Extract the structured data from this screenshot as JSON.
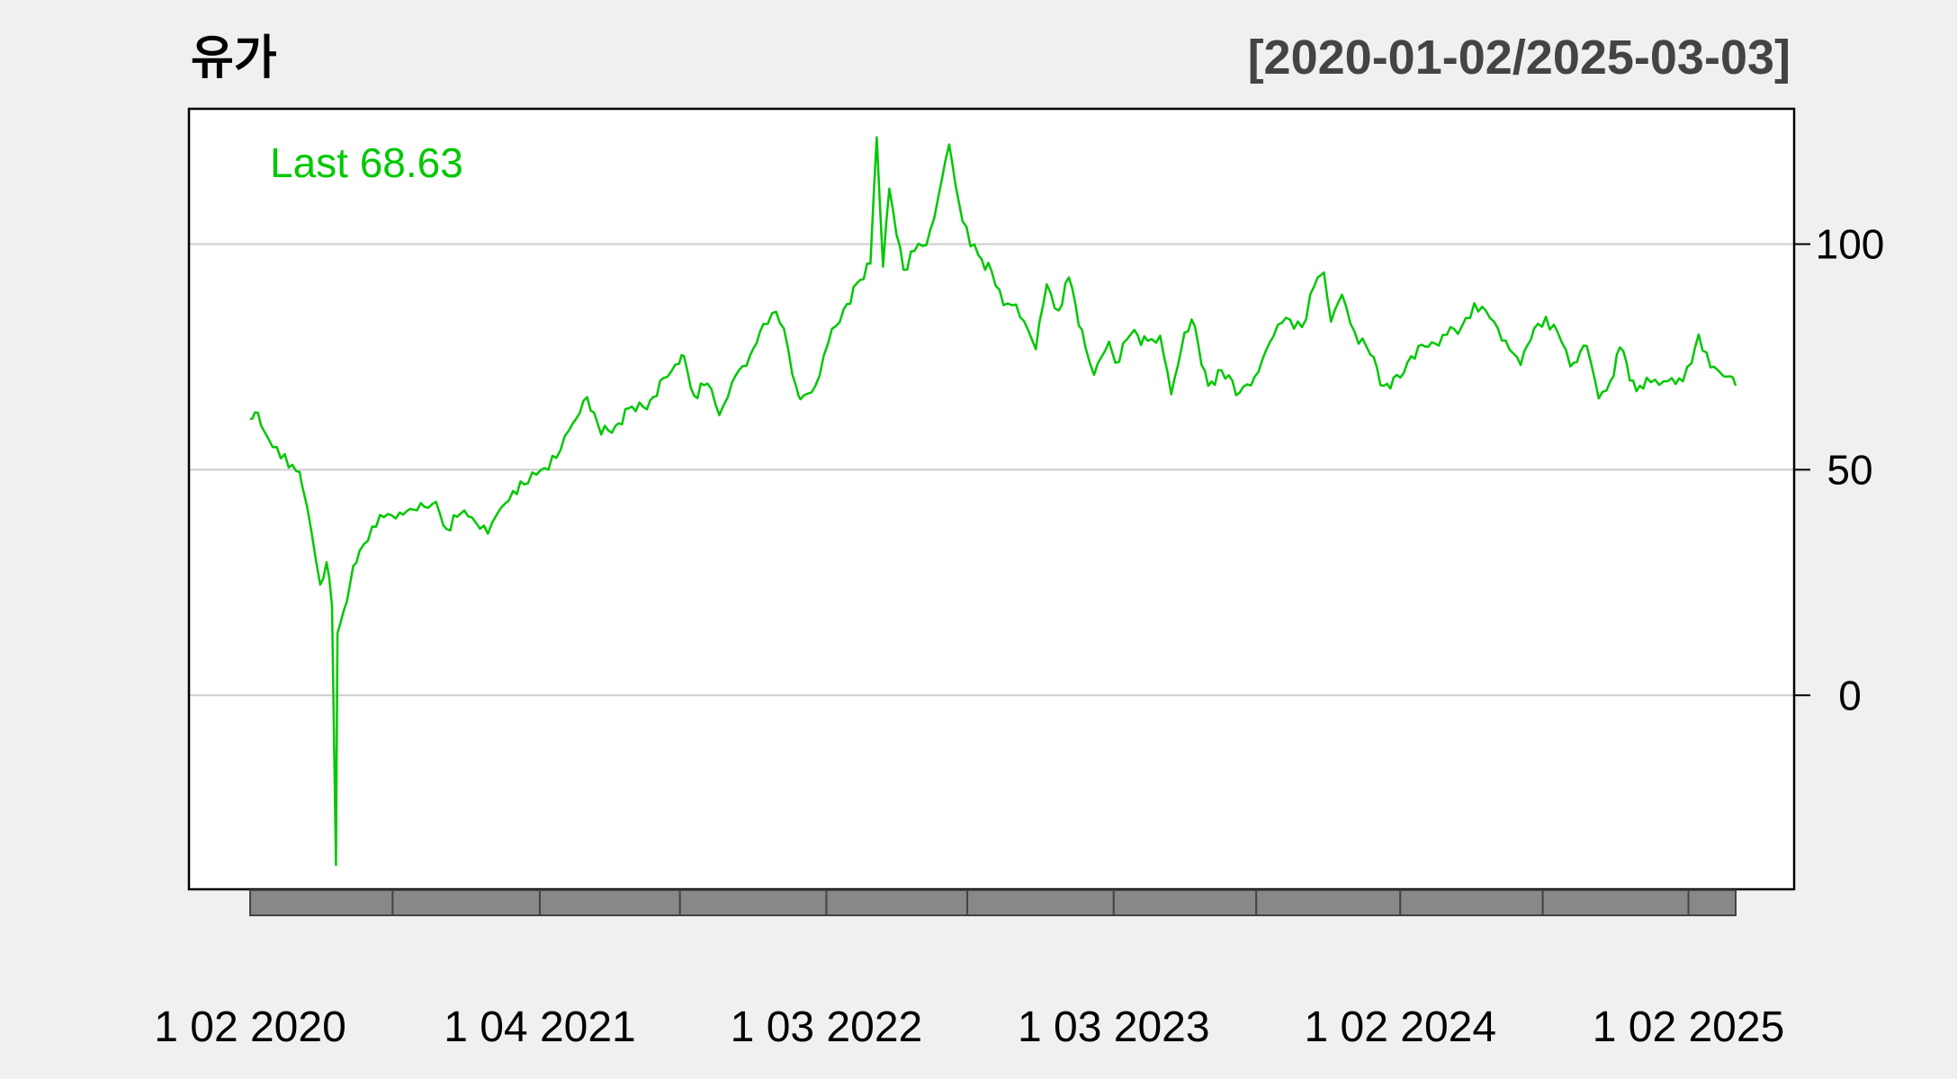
{
  "chart_data": {
    "type": "line",
    "title": "유가",
    "range_label": "[2020-01-02/2025-03-03]",
    "last_label": "Last 68.63",
    "line_color": "#00c800",
    "grid_color": "#cccccc",
    "ylim": [
      -43,
      130
    ],
    "yticks": [
      0,
      50,
      100
    ],
    "ytick_labels": [
      "0",
      "50",
      "100"
    ],
    "xlim": [
      "2020-01-02",
      "2025-03-03"
    ],
    "xtick_labels": [
      "1 02 2020",
      "1 04 2021",
      "1 03 2022",
      "1 03 2023",
      "1 02 2024",
      "1 02 2025"
    ],
    "xtick_dates": [
      "2020-01-02",
      "2021-01-04",
      "2022-01-03",
      "2023-01-03",
      "2024-01-02",
      "2025-01-02"
    ],
    "month_band_dates": [
      "2020-01-02",
      "2020-07-01",
      "2021-01-04",
      "2021-07-01",
      "2022-01-03",
      "2022-07-01",
      "2023-01-03",
      "2023-07-03",
      "2024-01-02",
      "2024-07-01",
      "2025-01-02",
      "2025-03-03"
    ],
    "series": [
      {
        "points": [
          [
            "2020-01-02",
            61.2
          ],
          [
            "2020-01-08",
            62.7
          ],
          [
            "2020-01-20",
            58.5
          ],
          [
            "2020-02-05",
            55.0
          ],
          [
            "2020-02-20",
            50.5
          ],
          [
            "2020-03-05",
            49.5
          ],
          [
            "2020-03-09",
            45.8
          ],
          [
            "2020-03-20",
            36.2
          ],
          [
            "2020-03-31",
            24.5
          ],
          [
            "2020-04-08",
            29.5
          ],
          [
            "2020-04-15",
            19.8
          ],
          [
            "2020-04-20",
            -37.6
          ],
          [
            "2020-04-22",
            13.8
          ],
          [
            "2020-04-30",
            18.8
          ],
          [
            "2020-05-08",
            24.7
          ],
          [
            "2020-05-20",
            32.0
          ],
          [
            "2020-06-05",
            37.4
          ],
          [
            "2020-06-20",
            39.5
          ],
          [
            "2020-07-10",
            40.5
          ],
          [
            "2020-08-01",
            41.0
          ],
          [
            "2020-08-25",
            42.9
          ],
          [
            "2020-09-08",
            36.8
          ],
          [
            "2020-09-25",
            40.2
          ],
          [
            "2020-10-10",
            39.4
          ],
          [
            "2020-10-30",
            35.8
          ],
          [
            "2020-11-15",
            41.4
          ],
          [
            "2020-12-01",
            45.3
          ],
          [
            "2020-12-20",
            47.0
          ],
          [
            "2021-01-05",
            49.9
          ],
          [
            "2021-01-25",
            52.6
          ],
          [
            "2021-02-10",
            58.7
          ],
          [
            "2021-03-05",
            66.1
          ],
          [
            "2021-03-23",
            57.8
          ],
          [
            "2021-04-10",
            59.7
          ],
          [
            "2021-05-01",
            64.0
          ],
          [
            "2021-05-20",
            63.4
          ],
          [
            "2021-06-10",
            70.3
          ],
          [
            "2021-06-30",
            73.5
          ],
          [
            "2021-07-06",
            75.2
          ],
          [
            "2021-07-19",
            66.4
          ],
          [
            "2021-08-05",
            69.1
          ],
          [
            "2021-08-20",
            62.1
          ],
          [
            "2021-09-05",
            69.3
          ],
          [
            "2021-09-28",
            75.3
          ],
          [
            "2021-10-15",
            82.3
          ],
          [
            "2021-10-26",
            84.7
          ],
          [
            "2021-11-10",
            81.3
          ],
          [
            "2021-11-26",
            68.2
          ],
          [
            "2021-12-01",
            65.6
          ],
          [
            "2021-12-20",
            68.6
          ],
          [
            "2022-01-05",
            77.9
          ],
          [
            "2022-01-25",
            85.6
          ],
          [
            "2022-02-15",
            92.1
          ],
          [
            "2022-02-28",
            95.7
          ],
          [
            "2022-03-08",
            123.7
          ],
          [
            "2022-03-16",
            95.0
          ],
          [
            "2022-03-24",
            112.3
          ],
          [
            "2022-04-11",
            94.3
          ],
          [
            "2022-04-25",
            98.5
          ],
          [
            "2022-05-10",
            99.8
          ],
          [
            "2022-05-25",
            110.3
          ],
          [
            "2022-06-08",
            122.1
          ],
          [
            "2022-06-20",
            109.6
          ],
          [
            "2022-07-05",
            99.5
          ],
          [
            "2022-07-15",
            97.6
          ],
          [
            "2022-08-01",
            93.9
          ],
          [
            "2022-08-16",
            86.5
          ],
          [
            "2022-09-01",
            86.6
          ],
          [
            "2022-09-26",
            76.7
          ],
          [
            "2022-10-10",
            91.1
          ],
          [
            "2022-10-25",
            85.3
          ],
          [
            "2022-11-07",
            92.6
          ],
          [
            "2022-11-28",
            77.2
          ],
          [
            "2022-12-09",
            71.0
          ],
          [
            "2022-12-28",
            78.4
          ],
          [
            "2023-01-05",
            73.7
          ],
          [
            "2023-01-25",
            80.1
          ],
          [
            "2023-02-15",
            78.6
          ],
          [
            "2023-03-03",
            79.7
          ],
          [
            "2023-03-17",
            66.7
          ],
          [
            "2023-04-03",
            80.4
          ],
          [
            "2023-04-12",
            83.3
          ],
          [
            "2023-05-03",
            68.6
          ],
          [
            "2023-05-20",
            72.0
          ],
          [
            "2023-06-12",
            67.1
          ],
          [
            "2023-07-01",
            70.6
          ],
          [
            "2023-07-25",
            79.6
          ],
          [
            "2023-08-10",
            83.7
          ],
          [
            "2023-08-30",
            81.6
          ],
          [
            "2023-09-15",
            90.8
          ],
          [
            "2023-09-27",
            93.7
          ],
          [
            "2023-10-06",
            82.8
          ],
          [
            "2023-10-20",
            88.8
          ],
          [
            "2023-11-05",
            80.6
          ],
          [
            "2023-11-25",
            75.5
          ],
          [
            "2023-12-12",
            68.6
          ],
          [
            "2024-01-02",
            70.4
          ],
          [
            "2024-01-25",
            77.4
          ],
          [
            "2024-02-15",
            78.0
          ],
          [
            "2024-03-01",
            79.9
          ],
          [
            "2024-03-20",
            81.7
          ],
          [
            "2024-04-05",
            86.9
          ],
          [
            "2024-04-25",
            83.6
          ],
          [
            "2024-05-15",
            78.6
          ],
          [
            "2024-06-03",
            73.2
          ],
          [
            "2024-06-20",
            81.3
          ],
          [
            "2024-07-05",
            83.9
          ],
          [
            "2024-07-25",
            78.3
          ],
          [
            "2024-08-05",
            72.9
          ],
          [
            "2024-08-26",
            77.4
          ],
          [
            "2024-09-10",
            65.8
          ],
          [
            "2024-09-25",
            69.7
          ],
          [
            "2024-10-07",
            77.1
          ],
          [
            "2024-10-28",
            67.4
          ],
          [
            "2024-11-10",
            70.4
          ],
          [
            "2024-11-26",
            68.8
          ],
          [
            "2024-12-12",
            70.3
          ],
          [
            "2024-12-26",
            69.6
          ],
          [
            "2025-01-06",
            73.6
          ],
          [
            "2025-01-15",
            80.0
          ],
          [
            "2025-01-30",
            72.7
          ],
          [
            "2025-02-12",
            71.4
          ],
          [
            "2025-02-24",
            70.7
          ],
          [
            "2025-03-03",
            68.63
          ]
        ]
      }
    ]
  }
}
